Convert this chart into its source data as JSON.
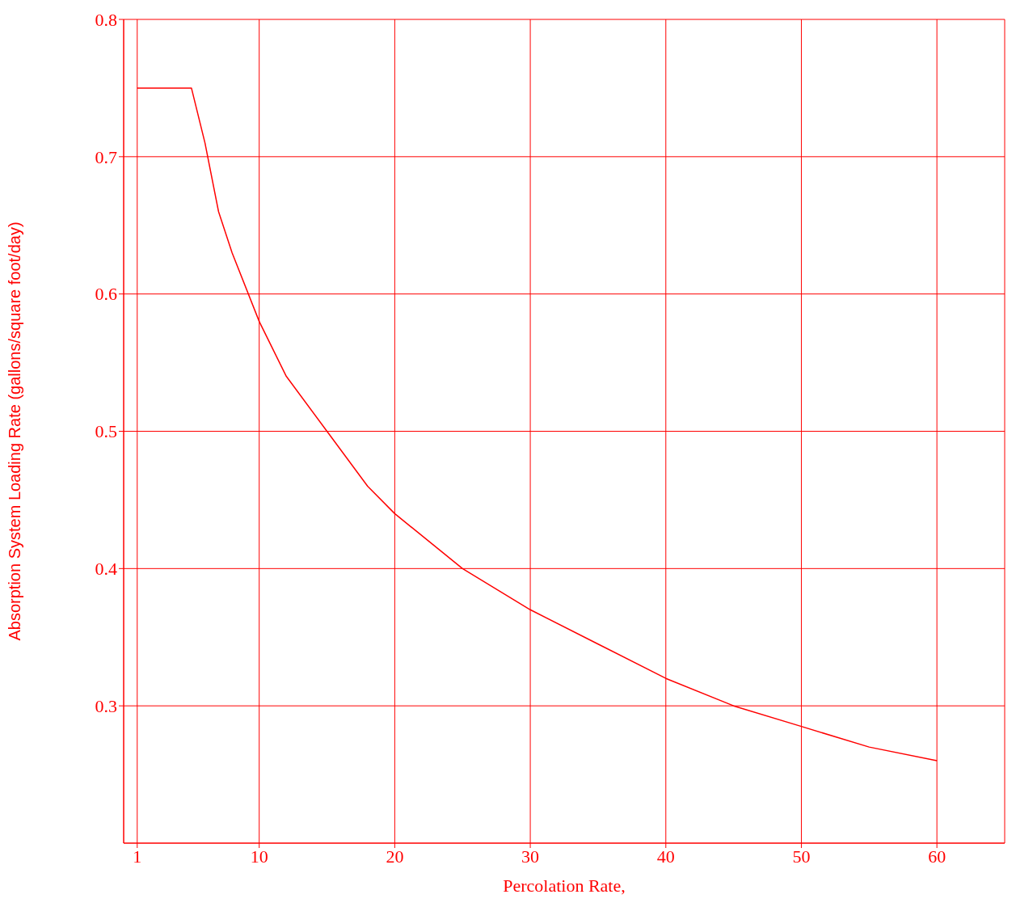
{
  "chart_data": {
    "type": "line",
    "xlabel": "Percolation Rate,",
    "ylabel": "Absorption System  Loading Rate  (gallons/square foot/day)",
    "x": [
      1,
      5,
      6,
      7,
      8,
      10,
      12,
      15,
      18,
      20,
      25,
      30,
      35,
      40,
      45,
      50,
      55,
      60
    ],
    "series": [
      {
        "color": "#ff0000",
        "values": [
          0.75,
          0.75,
          0.71,
          0.66,
          0.63,
          0.58,
          0.54,
          0.5,
          0.46,
          0.44,
          0.4,
          0.37,
          0.345,
          0.32,
          0.3,
          0.285,
          0.27,
          0.26
        ]
      }
    ],
    "xlim": [
      0,
      65
    ],
    "xticks": [
      1,
      10,
      20,
      30,
      40,
      50,
      60
    ],
    "ylim": [
      0.2,
      0.8
    ],
    "yticks": [
      0.3,
      0.4,
      0.5,
      0.6,
      0.7,
      0.8
    ],
    "grid": true,
    "marker": "none",
    "line_style": "solid"
  }
}
